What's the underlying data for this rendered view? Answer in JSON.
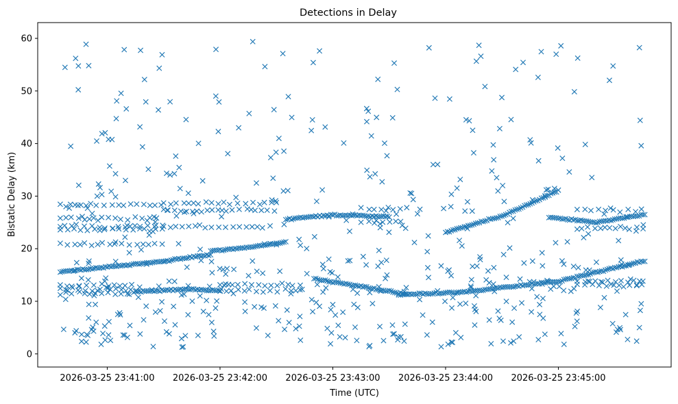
{
  "chart_data": {
    "type": "scatter",
    "title": "Detections in Delay",
    "xlabel": "Time (UTC)",
    "ylabel": "Bistatic Delay (km)",
    "x_start": "2026-03-25 23:40:35",
    "x_end": "2026-03-25 23:45:46",
    "xlim": [
      "2026-03-25 23:40:23",
      "2026-03-25 23:46:00"
    ],
    "ylim": [
      -2.5,
      63
    ],
    "x_ticks": [
      "2026-03-25 23:41:00",
      "2026-03-25 23:42:00",
      "2026-03-25 23:43:00",
      "2026-03-25 23:44:00",
      "2026-03-25 23:45:00"
    ],
    "y_ticks": [
      "0",
      "10",
      "20",
      "30",
      "40",
      "50",
      "60"
    ],
    "marker": "x",
    "color": "#1f77b4",
    "grid": false,
    "legend": "none",
    "tracks": [
      {
        "x": [
          "23:40:35",
          "23:41:30",
          "23:41:55"
        ],
        "y": [
          15.6,
          17.6,
          18.9
        ]
      },
      {
        "x": [
          "23:41:55",
          "23:42:15",
          "23:42:35"
        ],
        "y": [
          19.6,
          20.2,
          21.3
        ]
      },
      {
        "x": [
          "23:41:15",
          "23:41:45",
          "23:42:00"
        ],
        "y": [
          11.8,
          12.3,
          12.0
        ]
      },
      {
        "x": [
          "23:42:35",
          "23:43:00",
          "23:43:30"
        ],
        "y": [
          25.6,
          26.4,
          26.1
        ]
      },
      {
        "x": [
          "23:42:50",
          "23:43:15",
          "23:43:40"
        ],
        "y": [
          14.3,
          12.8,
          11.3
        ]
      },
      {
        "x": [
          "23:43:35",
          "23:44:10",
          "23:45:00",
          "23:45:46"
        ],
        "y": [
          11.2,
          11.8,
          13.8,
          17.7
        ]
      },
      {
        "x": [
          "23:44:00",
          "23:44:30",
          "23:45:00"
        ],
        "y": [
          23.1,
          26.2,
          31.0
        ]
      },
      {
        "x": [
          "23:44:55",
          "23:45:20",
          "23:45:46"
        ],
        "y": [
          26.0,
          25.0,
          26.5
        ]
      }
    ],
    "bands": [
      {
        "from": "23:40:35",
        "to": "23:41:30",
        "y": [
          20.8,
          23.6,
          24.2,
          25.8,
          28.3
        ]
      },
      {
        "from": "23:41:30",
        "to": "23:42:30",
        "y": [
          24.2,
          27.2,
          28.6
        ]
      },
      {
        "from": "23:40:35",
        "to": "23:41:15",
        "y": [
          11.5,
          12.2,
          13.1
        ]
      },
      {
        "from": "23:42:00",
        "to": "23:42:45",
        "y": [
          12.0,
          13.2
        ]
      },
      {
        "from": "23:43:15",
        "to": "23:43:40",
        "y": [
          25.2,
          27.6
        ]
      },
      {
        "from": "23:45:10",
        "to": "23:45:46",
        "y": [
          13.1,
          13.8,
          24.0,
          27.4
        ]
      }
    ]
  }
}
